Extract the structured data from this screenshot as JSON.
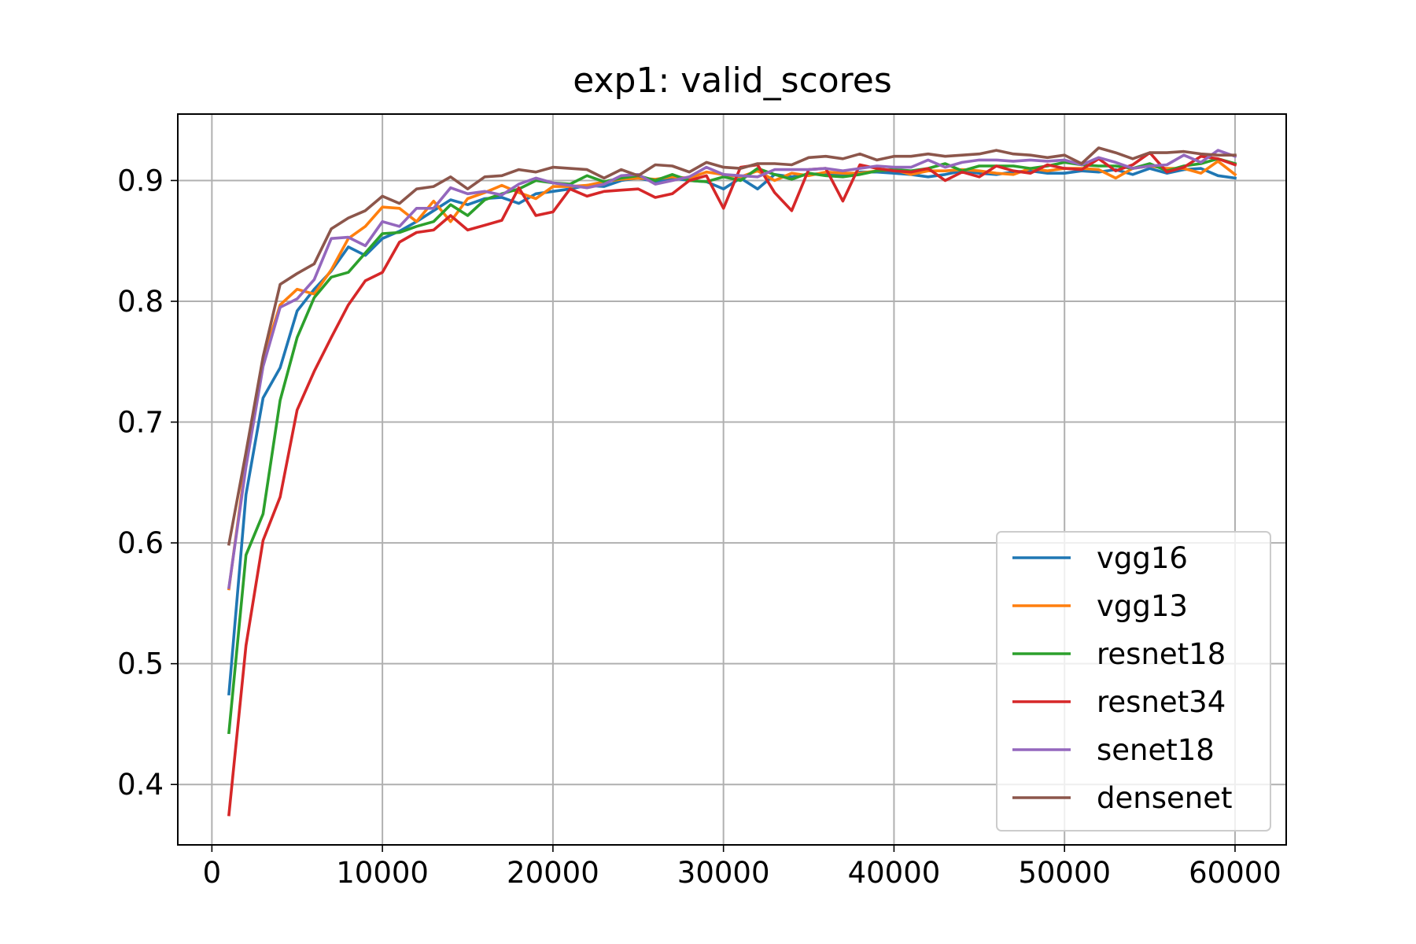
{
  "chart_data": {
    "type": "line",
    "title": "exp1: valid_scores",
    "xlabel": "",
    "ylabel": "",
    "xlim": [
      -2000,
      63000
    ],
    "ylim": [
      0.35,
      0.955
    ],
    "xticks": [
      0,
      10000,
      20000,
      30000,
      40000,
      50000,
      60000
    ],
    "xtick_labels": [
      "0",
      "10000",
      "20000",
      "30000",
      "40000",
      "50000",
      "60000"
    ],
    "yticks": [
      0.4,
      0.5,
      0.6,
      0.7,
      0.8,
      0.9
    ],
    "ytick_labels": [
      "0.4",
      "0.5",
      "0.6",
      "0.7",
      "0.8",
      "0.9"
    ],
    "grid": true,
    "legend_position": "bottom-right",
    "x": [
      1000,
      2000,
      3000,
      4000,
      5000,
      6000,
      7000,
      8000,
      9000,
      10000,
      11000,
      12000,
      13000,
      14000,
      15000,
      16000,
      17000,
      18000,
      19000,
      20000,
      21000,
      22000,
      23000,
      24000,
      25000,
      26000,
      27000,
      28000,
      29000,
      30000,
      31000,
      32000,
      33000,
      34000,
      35000,
      36000,
      37000,
      38000,
      39000,
      40000,
      41000,
      42000,
      43000,
      44000,
      45000,
      46000,
      47000,
      48000,
      49000,
      50000,
      51000,
      52000,
      53000,
      54000,
      55000,
      56000,
      57000,
      58000,
      59000,
      60000
    ],
    "series": [
      {
        "name": "vgg16",
        "color": "#1f77b4",
        "values": [
          0.475,
          0.64,
          0.72,
          0.745,
          0.792,
          0.81,
          0.825,
          0.845,
          0.838,
          0.852,
          0.858,
          0.866,
          0.875,
          0.884,
          0.88,
          0.885,
          0.886,
          0.881,
          0.889,
          0.891,
          0.893,
          0.896,
          0.895,
          0.9,
          0.902,
          0.899,
          0.902,
          0.9,
          0.899,
          0.893,
          0.902,
          0.893,
          0.905,
          0.903,
          0.905,
          0.906,
          0.904,
          0.907,
          0.907,
          0.906,
          0.905,
          0.903,
          0.905,
          0.908,
          0.906,
          0.905,
          0.907,
          0.908,
          0.906,
          0.906,
          0.908,
          0.907,
          0.909,
          0.905,
          0.91,
          0.906,
          0.909,
          0.91,
          0.904,
          0.902
        ]
      },
      {
        "name": "vgg13",
        "color": "#ff7f0e",
        "values": [
          0.562,
          0.668,
          0.752,
          0.797,
          0.81,
          0.806,
          0.826,
          0.852,
          0.862,
          0.878,
          0.877,
          0.866,
          0.883,
          0.866,
          0.885,
          0.89,
          0.896,
          0.89,
          0.885,
          0.895,
          0.895,
          0.896,
          0.899,
          0.901,
          0.902,
          0.901,
          0.903,
          0.902,
          0.907,
          0.905,
          0.903,
          0.908,
          0.9,
          0.906,
          0.904,
          0.907,
          0.906,
          0.906,
          0.908,
          0.909,
          0.905,
          0.908,
          0.908,
          0.909,
          0.908,
          0.906,
          0.905,
          0.91,
          0.908,
          0.91,
          0.91,
          0.909,
          0.902,
          0.91,
          0.912,
          0.91,
          0.91,
          0.906,
          0.916,
          0.905
        ]
      },
      {
        "name": "resnet18",
        "color": "#2ca02c",
        "values": [
          0.443,
          0.59,
          0.624,
          0.718,
          0.77,
          0.803,
          0.82,
          0.824,
          0.84,
          0.856,
          0.857,
          0.862,
          0.866,
          0.88,
          0.871,
          0.884,
          0.889,
          0.893,
          0.9,
          0.898,
          0.897,
          0.904,
          0.899,
          0.902,
          0.904,
          0.9,
          0.905,
          0.9,
          0.899,
          0.903,
          0.9,
          0.91,
          0.905,
          0.901,
          0.906,
          0.904,
          0.903,
          0.905,
          0.908,
          0.909,
          0.908,
          0.91,
          0.914,
          0.908,
          0.912,
          0.912,
          0.912,
          0.91,
          0.912,
          0.915,
          0.913,
          0.912,
          0.912,
          0.91,
          0.914,
          0.908,
          0.912,
          0.914,
          0.918,
          0.914
        ]
      },
      {
        "name": "resnet34",
        "color": "#d62728",
        "values": [
          0.375,
          0.515,
          0.602,
          0.638,
          0.71,
          0.742,
          0.77,
          0.797,
          0.817,
          0.824,
          0.849,
          0.857,
          0.859,
          0.871,
          0.859,
          0.863,
          0.867,
          0.894,
          0.871,
          0.874,
          0.893,
          0.887,
          0.891,
          0.892,
          0.893,
          0.886,
          0.889,
          0.9,
          0.904,
          0.877,
          0.911,
          0.913,
          0.89,
          0.875,
          0.909,
          0.91,
          0.883,
          0.913,
          0.91,
          0.908,
          0.907,
          0.91,
          0.9,
          0.907,
          0.903,
          0.912,
          0.908,
          0.906,
          0.913,
          0.91,
          0.909,
          0.918,
          0.908,
          0.913,
          0.923,
          0.907,
          0.911,
          0.92,
          0.918,
          0.913
        ]
      },
      {
        "name": "senet18",
        "color": "#9467bd",
        "values": [
          0.563,
          0.663,
          0.746,
          0.795,
          0.802,
          0.818,
          0.852,
          0.853,
          0.846,
          0.866,
          0.862,
          0.877,
          0.877,
          0.894,
          0.889,
          0.891,
          0.888,
          0.897,
          0.902,
          0.898,
          0.896,
          0.894,
          0.897,
          0.904,
          0.905,
          0.897,
          0.9,
          0.903,
          0.911,
          0.905,
          0.904,
          0.903,
          0.909,
          0.909,
          0.909,
          0.91,
          0.908,
          0.91,
          0.912,
          0.911,
          0.911,
          0.917,
          0.911,
          0.915,
          0.917,
          0.917,
          0.916,
          0.917,
          0.916,
          0.917,
          0.913,
          0.919,
          0.915,
          0.91,
          0.912,
          0.913,
          0.921,
          0.915,
          0.925,
          0.92
        ]
      },
      {
        "name": "densenet",
        "color": "#8c564b",
        "values": [
          0.599,
          0.675,
          0.754,
          0.814,
          0.823,
          0.831,
          0.86,
          0.869,
          0.875,
          0.887,
          0.881,
          0.893,
          0.895,
          0.903,
          0.893,
          0.903,
          0.904,
          0.909,
          0.907,
          0.911,
          0.91,
          0.909,
          0.902,
          0.909,
          0.904,
          0.913,
          0.912,
          0.907,
          0.915,
          0.911,
          0.91,
          0.914,
          0.914,
          0.913,
          0.919,
          0.92,
          0.918,
          0.922,
          0.917,
          0.92,
          0.92,
          0.922,
          0.92,
          0.921,
          0.922,
          0.925,
          0.922,
          0.921,
          0.919,
          0.921,
          0.914,
          0.927,
          0.923,
          0.918,
          0.923,
          0.923,
          0.924,
          0.922,
          0.921,
          0.921
        ]
      }
    ]
  }
}
